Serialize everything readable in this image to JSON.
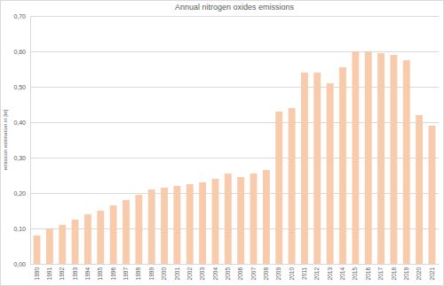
{
  "chart_data": {
    "type": "bar",
    "title": "Annual nitrogen oxides emissions",
    "ylabel": "emission estimation in [kt]",
    "categories": [
      "1990",
      "1991",
      "1992",
      "1993",
      "1994",
      "1995",
      "1996",
      "1997",
      "1998",
      "1999",
      "2000",
      "2001",
      "2002",
      "2003",
      "2004",
      "2005",
      "2006",
      "2007",
      "2008",
      "2009",
      "2010",
      "2011",
      "2012",
      "2013",
      "2014",
      "2015",
      "2016",
      "2017",
      "2018",
      "2019",
      "2020",
      "2021"
    ],
    "values": [
      0.08,
      0.1,
      0.11,
      0.125,
      0.14,
      0.15,
      0.165,
      0.18,
      0.195,
      0.21,
      0.215,
      0.22,
      0.225,
      0.23,
      0.24,
      0.255,
      0.245,
      0.255,
      0.265,
      0.43,
      0.44,
      0.54,
      0.54,
      0.51,
      0.555,
      0.6,
      0.6,
      0.595,
      0.59,
      0.575,
      0.42,
      0.39
    ],
    "color": "#f8cbad",
    "ylim": [
      0,
      0.7
    ],
    "yticks": [
      {
        "value": 0,
        "label": "0,00"
      },
      {
        "value": 0.1,
        "label": "0,10"
      },
      {
        "value": 0.2,
        "label": "0,20"
      },
      {
        "value": 0.3,
        "label": "0,30"
      },
      {
        "value": 0.4,
        "label": "0,40"
      },
      {
        "value": 0.5,
        "label": "0,50"
      },
      {
        "value": 0.6,
        "label": "0,60"
      },
      {
        "value": 0.7,
        "label": "0,70"
      }
    ],
    "grid": true
  }
}
